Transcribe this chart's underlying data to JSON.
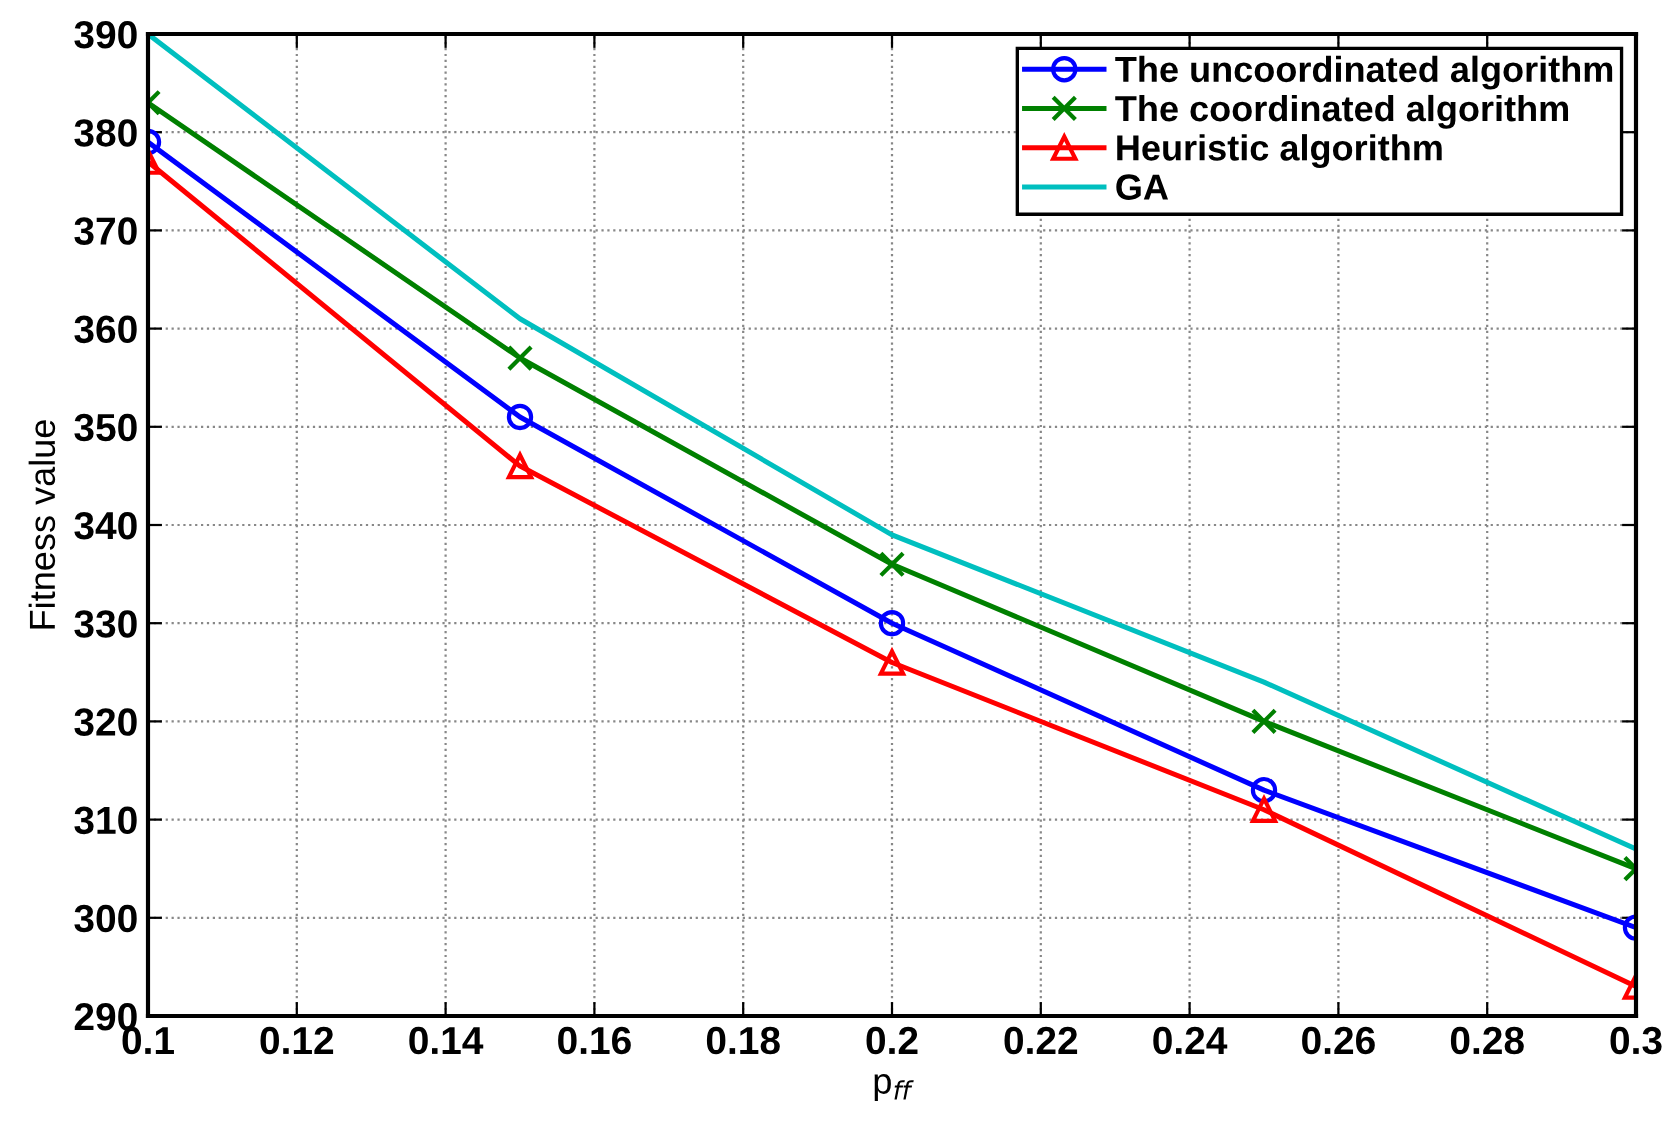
{
  "chart_data": {
    "type": "line",
    "xlabel": "p$_{ff}$",
    "ylabel": "Fitness value",
    "x": [
      0.1,
      0.15,
      0.2,
      0.25,
      0.3
    ],
    "series": [
      {
        "name": "The uncoordinated algorithm",
        "color": "#0000ff",
        "marker": "circle",
        "values": [
          379,
          351,
          330,
          313,
          299
        ]
      },
      {
        "name": "The coordinated algorithm",
        "color": "#008000",
        "marker": "cross",
        "values": [
          383,
          357,
          336,
          320,
          305
        ]
      },
      {
        "name": "Heuristic algorithm",
        "color": "#ff0000",
        "marker": "triangle",
        "values": [
          377,
          346,
          326,
          311,
          293
        ]
      },
      {
        "name": "GA",
        "color": "#00bfbf",
        "marker": "none",
        "values": [
          390,
          361,
          339,
          324,
          307
        ]
      }
    ],
    "xlim": [
      0.1,
      0.3
    ],
    "xticks": [
      0.1,
      0.12,
      0.14,
      0.16,
      0.18,
      0.2,
      0.22,
      0.24,
      0.26,
      0.28,
      0.3
    ],
    "ylim": [
      290,
      390
    ],
    "yticks": [
      290,
      300,
      310,
      320,
      330,
      340,
      350,
      360,
      370,
      380,
      390
    ],
    "grid": true,
    "legend": "top right",
    "line_style": "solid"
  }
}
